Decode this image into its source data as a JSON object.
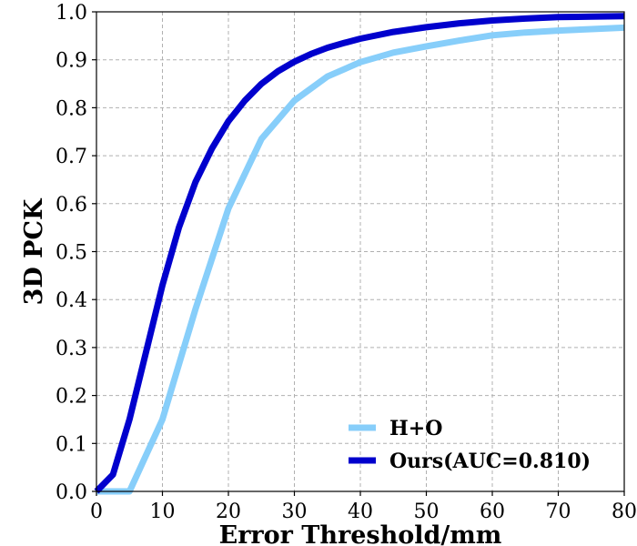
{
  "chart_data": {
    "type": "line",
    "xlabel": "Error Threshold/mm",
    "ylabel": "3D PCK",
    "xlim": [
      0,
      80
    ],
    "ylim": [
      0,
      1.0
    ],
    "xticks": [
      0,
      10,
      20,
      30,
      40,
      50,
      60,
      70,
      80
    ],
    "xtick_labels": [
      "0",
      "10",
      "20",
      "30",
      "40",
      "50",
      "60",
      "70",
      "80"
    ],
    "yticks": [
      0.0,
      0.1,
      0.2,
      0.3,
      0.4,
      0.5,
      0.6,
      0.7,
      0.8,
      0.9,
      1.0
    ],
    "ytick_labels": [
      "0.0",
      "0.1",
      "0.2",
      "0.3",
      "0.4",
      "0.5",
      "0.6",
      "0.7",
      "0.8",
      "0.9",
      "1.0"
    ],
    "grid": true,
    "legend_position": "bottom-right",
    "series": [
      {
        "name": "H+O",
        "color": "#87cefa",
        "x": [
          0,
          5,
          10,
          15,
          20,
          25,
          30,
          35,
          40,
          45,
          50,
          55,
          60,
          65,
          70,
          75,
          80
        ],
        "y": [
          0.0,
          0.0,
          0.15,
          0.38,
          0.59,
          0.735,
          0.815,
          0.865,
          0.895,
          0.915,
          0.928,
          0.94,
          0.951,
          0.957,
          0.961,
          0.964,
          0.967
        ]
      },
      {
        "name": "Ours(AUC=0.810)",
        "color": "#0000cd",
        "x": [
          0,
          2.5,
          5,
          7.5,
          10,
          12.5,
          15,
          17.5,
          20,
          22.5,
          25,
          27.5,
          30,
          32.5,
          35,
          37.5,
          40,
          45,
          50,
          55,
          60,
          65,
          70,
          75,
          80
        ],
        "y": [
          0.0,
          0.035,
          0.15,
          0.29,
          0.43,
          0.55,
          0.645,
          0.715,
          0.772,
          0.815,
          0.85,
          0.876,
          0.896,
          0.912,
          0.925,
          0.935,
          0.944,
          0.958,
          0.968,
          0.976,
          0.982,
          0.986,
          0.989,
          0.99,
          0.991
        ]
      }
    ]
  }
}
